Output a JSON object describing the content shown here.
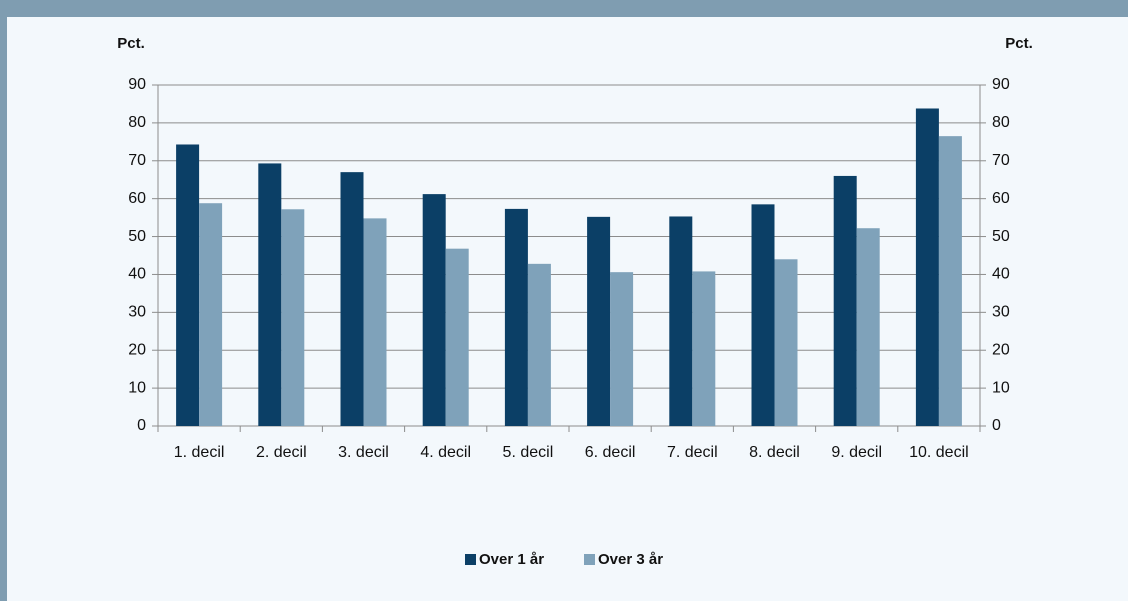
{
  "chart_data": {
    "type": "bar",
    "ylabel": "Pct.",
    "y2label": "Pct.",
    "categories": [
      "1. decil",
      "2. decil",
      "3. decil",
      "4. decil",
      "5. decil",
      "6. decil",
      "7. decil",
      "8. decil",
      "9. decil",
      "10. decil"
    ],
    "series": [
      {
        "name": "Over 1 år",
        "color": "#0b3f66",
        "values": [
          74.3,
          69.3,
          67,
          61.2,
          57.3,
          55.2,
          55.3,
          58.5,
          66,
          83.8
        ]
      },
      {
        "name": "Over 3 år",
        "color": "#7fa2ba",
        "values": [
          58.8,
          57.2,
          54.8,
          46.8,
          42.8,
          40.6,
          40.8,
          44,
          52.2,
          76.5
        ]
      }
    ],
    "ylim": [
      0,
      90
    ],
    "yticks": [
      0,
      10,
      20,
      30,
      40,
      50,
      60,
      70,
      80,
      90
    ],
    "y2lim": [
      0,
      90
    ],
    "y2ticks": [
      0,
      10,
      20,
      30,
      40,
      50,
      60,
      70,
      80,
      90
    ],
    "grid": true,
    "legend": "bottom"
  }
}
